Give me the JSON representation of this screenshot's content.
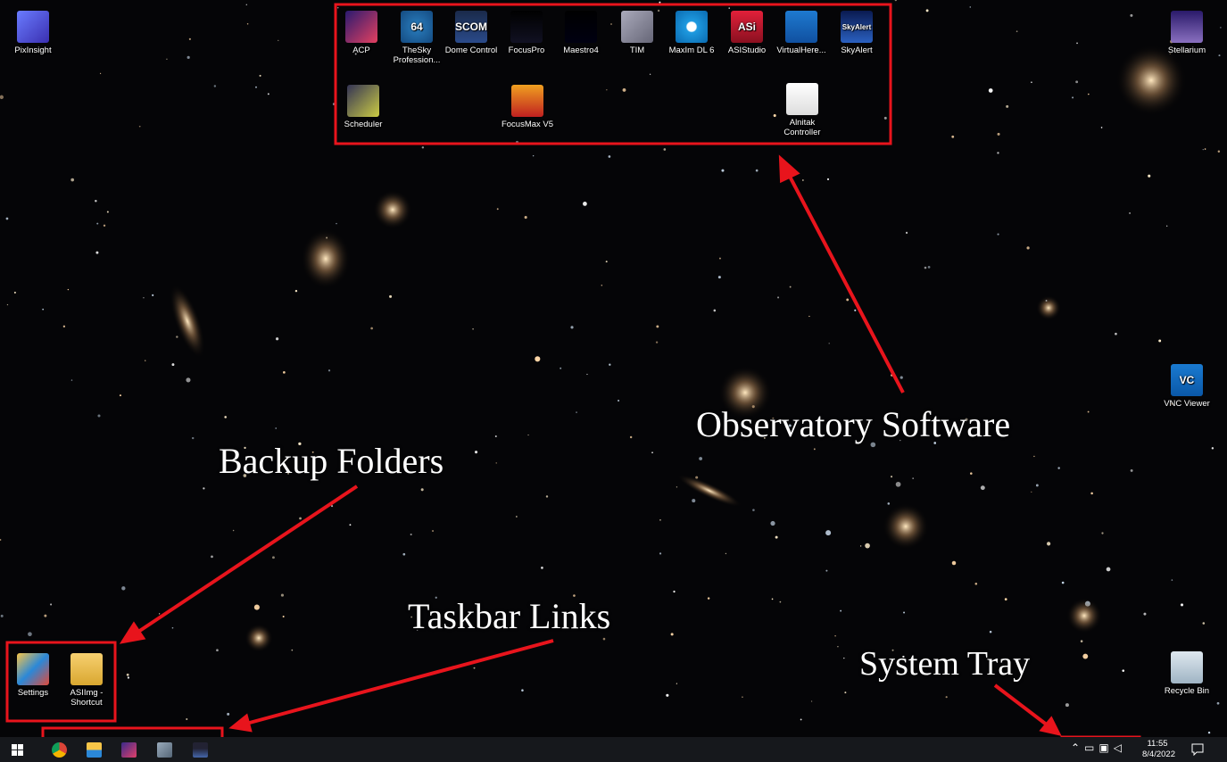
{
  "desktop_icons": [
    {
      "label": "PixInsight"
    },
    {
      "label": "ACP"
    },
    {
      "label": "TheSky Profession...",
      "glyph": "64"
    },
    {
      "label": "Dome Control",
      "glyph": "SCOM"
    },
    {
      "label": "FocusPro"
    },
    {
      "label": "Maestro4"
    },
    {
      "label": "TIM"
    },
    {
      "label": "MaxIm DL 6"
    },
    {
      "label": "ASIStudio",
      "glyph": "ASi"
    },
    {
      "label": "VirtualHere..."
    },
    {
      "label": "SkyAlert",
      "glyph": "SkyAlert"
    },
    {
      "label": "Scheduler"
    },
    {
      "label": "FocusMax V5"
    },
    {
      "label": "Alnitak Controller"
    },
    {
      "label": "Stellarium"
    },
    {
      "label": "VNC Viewer",
      "glyph": "VC"
    },
    {
      "label": "Settings"
    },
    {
      "label": "ASIImg - Shortcut"
    },
    {
      "label": "Recycle Bin"
    }
  ],
  "annotations": [
    {
      "text": "Observatory Software"
    },
    {
      "text": "Backup Folders"
    },
    {
      "text": "Taskbar Links"
    },
    {
      "text": "System Tray"
    }
  ],
  "taskbar": {
    "clock": {
      "time": "11:55",
      "date": "8/4/2022"
    }
  }
}
